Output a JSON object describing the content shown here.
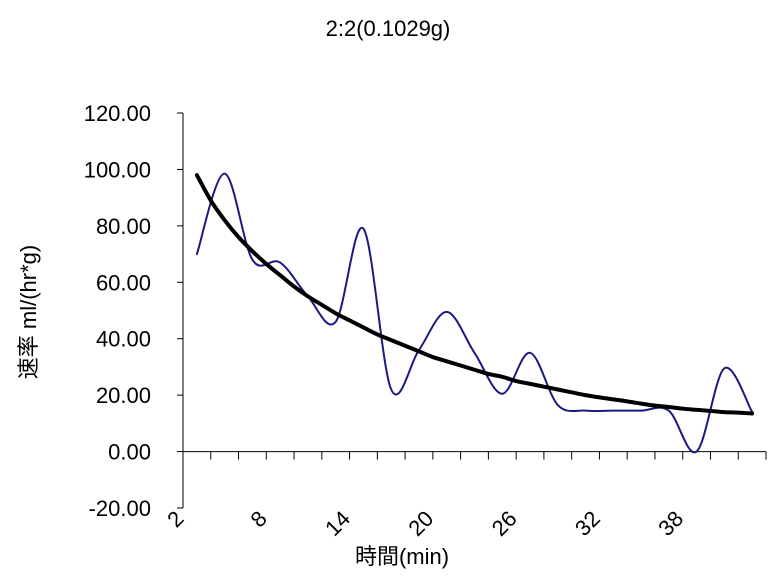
{
  "chart_data": {
    "type": "line",
    "title": "2:2(0.1029g)",
    "xlabel": "時間(min)",
    "ylabel": "速率 ml/(hr*g)",
    "ylim": [
      -20,
      120
    ],
    "y_ticks": [
      "120.00",
      "100.00",
      "80.00",
      "60.00",
      "40.00",
      "20.00",
      "0.00",
      "-20.00"
    ],
    "y_tick_values": [
      120,
      100,
      80,
      60,
      40,
      20,
      0,
      -20
    ],
    "x_tick_labels": [
      "2",
      "8",
      "14",
      "20",
      "26",
      "32",
      "38"
    ],
    "x_tick_values": [
      2,
      8,
      14,
      20,
      26,
      32,
      38
    ],
    "xlim": [
      2,
      44
    ],
    "grid": false,
    "legend": "none",
    "series": [
      {
        "color": "#1a1a80",
        "smooth": true,
        "x": [
          3,
          5,
          7,
          9,
          11,
          13,
          15,
          17,
          19,
          21,
          23,
          25,
          27,
          29,
          31,
          33,
          35,
          37,
          39,
          41,
          43
        ],
        "values": [
          70,
          98.5,
          68,
          67,
          55,
          46,
          79,
          22,
          36,
          49.5,
          35,
          20.5,
          35,
          16.5,
          14.5,
          14.5,
          14.5,
          14.5,
          0,
          29.5,
          14
        ]
      },
      {
        "color": "#000000",
        "type": "trend",
        "x": [
          3,
          4,
          5,
          6,
          7,
          8,
          9,
          10,
          11,
          12,
          13,
          14,
          15,
          16,
          17,
          18,
          19,
          20,
          21,
          22,
          23,
          24,
          25,
          26,
          27,
          28,
          29,
          30,
          31,
          32,
          33,
          34,
          35,
          36,
          37,
          38,
          39,
          40,
          41,
          42,
          43
        ],
        "values": [
          98,
          89,
          82,
          76,
          71,
          66.5,
          62.5,
          58.5,
          55,
          52,
          49,
          46.5,
          44,
          41.5,
          39.5,
          37.5,
          35.5,
          33.5,
          32,
          30.5,
          29,
          27.5,
          26.5,
          25,
          24,
          23,
          22,
          21,
          20,
          19.2,
          18.5,
          17.8,
          17,
          16.3,
          15.8,
          15.2,
          14.8,
          14.4,
          14,
          13.8,
          13.5
        ]
      }
    ]
  }
}
